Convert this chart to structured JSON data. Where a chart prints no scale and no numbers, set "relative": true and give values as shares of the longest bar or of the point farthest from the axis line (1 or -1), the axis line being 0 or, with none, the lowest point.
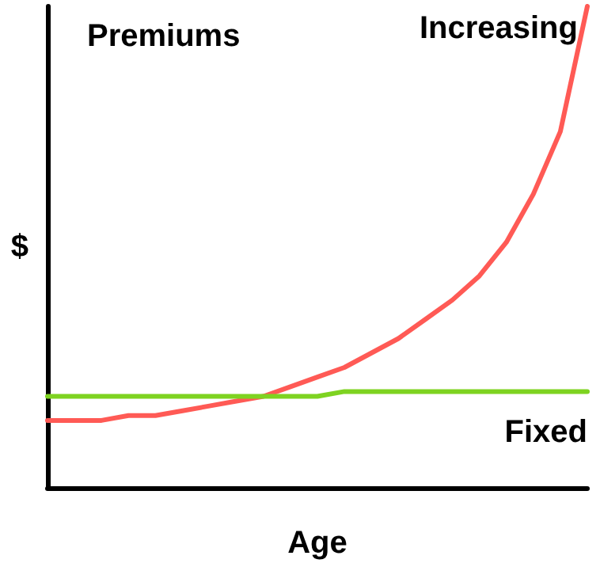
{
  "chart_data": {
    "type": "line",
    "title": "Premiums",
    "xlabel": "Age",
    "ylabel": "$",
    "relative": true,
    "legend": false,
    "grid": false,
    "marker": "none",
    "line_style": "solid",
    "categories": [
      null,
      null,
      null,
      null,
      null,
      null,
      null,
      null,
      null,
      null,
      null,
      null,
      null,
      null,
      null,
      null,
      null,
      null,
      null,
      null,
      null
    ],
    "series": [
      {
        "name": "Increasing",
        "color": "#ff5a55",
        "values": [
          0.14,
          0.14,
          0.14,
          0.15,
          0.15,
          0.16,
          0.17,
          0.18,
          0.19,
          0.21,
          0.23,
          0.25,
          0.28,
          0.31,
          0.35,
          0.39,
          0.44,
          0.51,
          0.61,
          0.74,
          1
        ]
      },
      {
        "name": "Fixed",
        "color": "#7ed321",
        "values": [
          0.19,
          0.19,
          0.19,
          0.19,
          0.19,
          0.19,
          0.19,
          0.19,
          0.19,
          0.19,
          0.19,
          0.2,
          0.2,
          0.2,
          0.2,
          0.2,
          0.2,
          0.2,
          0.2,
          0.2,
          0.2
        ]
      }
    ]
  }
}
